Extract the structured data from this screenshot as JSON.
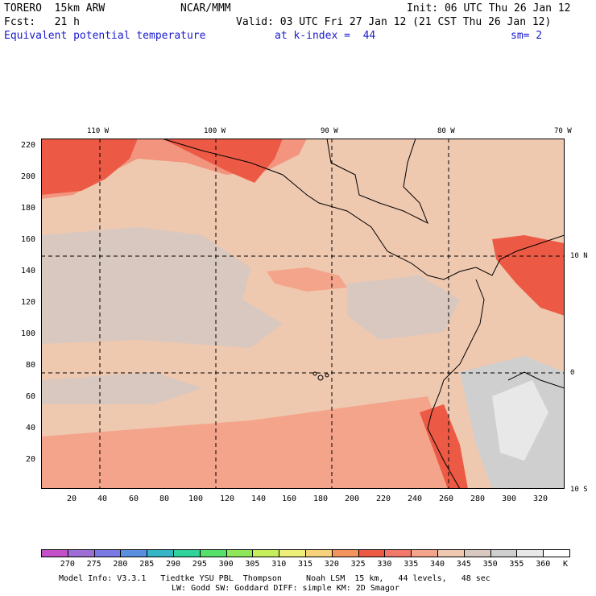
{
  "header": {
    "model": "TORERO  15km ARW",
    "org": "NCAR/MMM",
    "init": "Init: 06 UTC Thu 26 Jan 12",
    "fcst": "Fcst:   21 h",
    "valid": "Valid: 03 UTC Fri 27 Jan 12 (21 CST Thu 26 Jan 12)",
    "field": "Equivalent potential temperature",
    "level": "at k-index =  44",
    "smooth": "sm= 2"
  },
  "map": {
    "top_lon_labels": [
      "110 W",
      "100 W",
      "90 W",
      "80 W",
      "70 W"
    ],
    "right_lat_labels": [
      "10 N",
      "0",
      "10 S"
    ],
    "left_grid_labels": [
      "220",
      "200",
      "180",
      "160",
      "140",
      "120",
      "100",
      "80",
      "60",
      "40",
      "20"
    ],
    "bottom_grid_labels": [
      "20",
      "40",
      "60",
      "80",
      "100",
      "120",
      "140",
      "160",
      "180",
      "200",
      "220",
      "240",
      "260",
      "280",
      "300",
      "320"
    ]
  },
  "colorbar": {
    "labels": [
      "270",
      "275",
      "280",
      "285",
      "290",
      "295",
      "300",
      "305",
      "310",
      "315",
      "320",
      "325",
      "330",
      "335",
      "340",
      "345",
      "350",
      "355",
      "360"
    ],
    "unit": "K",
    "colors": [
      "#c34fc9",
      "#9d6fd6",
      "#7b79e4",
      "#5a8fe0",
      "#35b6c6",
      "#2fd29a",
      "#56e06a",
      "#8fe85a",
      "#c6ee5a",
      "#eef07a",
      "#f6d27a",
      "#f2945e",
      "#ec5a45",
      "#f2786a",
      "#f4a48a",
      "#efc8b0",
      "#d8c8c0",
      "#cfcfcf",
      "#e8e8e8",
      "#ffffff"
    ]
  },
  "footer": {
    "line1": "Model Info: V3.3.1   Tiedtke YSU PBL  Thompson     Noah LSM  15 km,   44 levels,   48 sec",
    "line2": "LW: Godd SW: Goddard DIFF: simple KM: 2D Smagor"
  }
}
